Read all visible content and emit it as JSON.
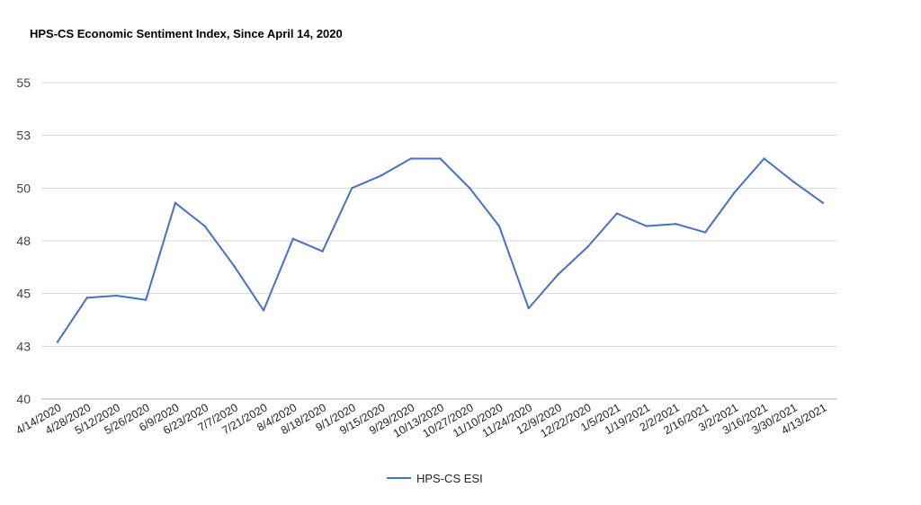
{
  "chart_data": {
    "type": "line",
    "title": "HPS-CS Economic Sentiment Index, Since April 14, 2020",
    "xlabel": "",
    "ylabel": "",
    "ylim": [
      40,
      55
    ],
    "yticks": [
      "40",
      "43",
      "45",
      "48",
      "50",
      "53",
      "55"
    ],
    "grid": true,
    "legend_position": "bottom",
    "line_color": "#4472c4",
    "categories": [
      "4/14/2020",
      "4/28/2020",
      "5/12/2020",
      "5/26/2020",
      "6/9/2020",
      "6/23/2020",
      "7/7/2020",
      "7/21/2020",
      "8/4/2020",
      "8/18/2020",
      "9/1/2020",
      "9/15/2020",
      "9/29/2020",
      "10/13/2020",
      "10/27/2020",
      "11/10/2020",
      "11/24/2020",
      "12/9/2020",
      "12/22/2020",
      "1/5/2021",
      "1/19/2021",
      "2/2/2021",
      "2/16/2021",
      "3/2/2021",
      "3/16/2021",
      "3/30/2021",
      "4/13/2021"
    ],
    "series": [
      {
        "name": "HPS-CS ESI",
        "values": [
          42.7,
          44.8,
          44.9,
          44.7,
          49.3,
          48.2,
          46.3,
          44.2,
          47.6,
          47.0,
          50.0,
          50.6,
          51.4,
          51.4,
          50.0,
          48.2,
          44.3,
          45.9,
          47.2,
          48.8,
          48.2,
          48.3,
          47.9,
          49.8,
          51.4,
          50.3,
          49.3
        ]
      }
    ]
  }
}
